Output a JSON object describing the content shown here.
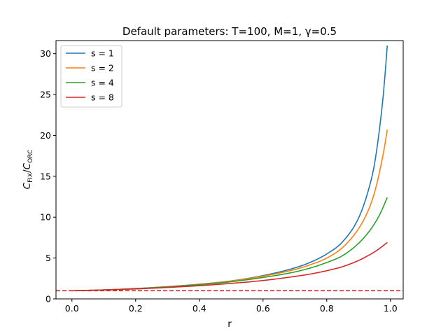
{
  "chart_data": {
    "type": "line",
    "title": "Default parameters: T=100, M=1, γ=0.5",
    "xlabel": "r",
    "ylabel": "C_FIX/C_ORC",
    "ylabel_main_1": "C",
    "ylabel_sub_1": "FIX",
    "ylabel_slash": "/",
    "ylabel_main_2": "C",
    "ylabel_sub_2": "ORC",
    "xlim": [
      -0.05,
      1.04
    ],
    "ylim": [
      0,
      31.6
    ],
    "xticks": [
      0.0,
      0.2,
      0.4,
      0.6,
      0.8,
      1.0
    ],
    "xtick_labels": [
      "0.0",
      "0.2",
      "0.4",
      "0.6",
      "0.8",
      "1.0"
    ],
    "yticks": [
      0,
      5,
      10,
      15,
      20,
      25,
      30
    ],
    "ytick_labels": [
      "0",
      "5",
      "10",
      "15",
      "20",
      "25",
      "30"
    ],
    "grid": false,
    "legend_position": "top-left",
    "reference_line": {
      "y": 1,
      "color": "#d62728",
      "style": "dashed"
    },
    "series": [
      {
        "name": "s = 1",
        "color": "#1f77b4",
        "x": [
          0.0,
          0.1,
          0.2,
          0.3,
          0.4,
          0.5,
          0.6,
          0.7,
          0.75,
          0.8,
          0.85,
          0.9,
          0.93,
          0.95,
          0.97,
          0.98,
          0.99
        ],
        "y": [
          1.0,
          1.1,
          1.27,
          1.5,
          1.8,
          2.2,
          2.85,
          3.8,
          4.5,
          5.5,
          7.0,
          9.9,
          13.2,
          16.5,
          22.2,
          26.0,
          31.0
        ]
      },
      {
        "name": "s = 2",
        "color": "#ff7f0e",
        "x": [
          0.0,
          0.1,
          0.2,
          0.3,
          0.4,
          0.5,
          0.6,
          0.7,
          0.75,
          0.8,
          0.85,
          0.9,
          0.93,
          0.95,
          0.97,
          0.98,
          0.99
        ],
        "y": [
          1.0,
          1.1,
          1.26,
          1.49,
          1.78,
          2.18,
          2.78,
          3.6,
          4.2,
          5.0,
          6.3,
          8.6,
          10.8,
          13.0,
          16.3,
          18.3,
          20.7
        ]
      },
      {
        "name": "s = 4",
        "color": "#2ca02c",
        "x": [
          0.0,
          0.1,
          0.2,
          0.3,
          0.4,
          0.5,
          0.6,
          0.7,
          0.75,
          0.8,
          0.85,
          0.9,
          0.93,
          0.95,
          0.97,
          0.98,
          0.99
        ],
        "y": [
          1.0,
          1.1,
          1.25,
          1.47,
          1.74,
          2.1,
          2.62,
          3.3,
          3.8,
          4.45,
          5.3,
          6.8,
          8.1,
          9.2,
          10.6,
          11.5,
          12.4
        ]
      },
      {
        "name": "s = 8",
        "color": "#d62728",
        "x": [
          0.0,
          0.1,
          0.2,
          0.3,
          0.4,
          0.5,
          0.6,
          0.7,
          0.75,
          0.8,
          0.85,
          0.9,
          0.93,
          0.95,
          0.97,
          0.98,
          0.99
        ],
        "y": [
          1.0,
          1.09,
          1.22,
          1.4,
          1.62,
          1.9,
          2.25,
          2.75,
          3.05,
          3.45,
          3.95,
          4.7,
          5.3,
          5.75,
          6.3,
          6.6,
          6.9
        ]
      }
    ]
  }
}
